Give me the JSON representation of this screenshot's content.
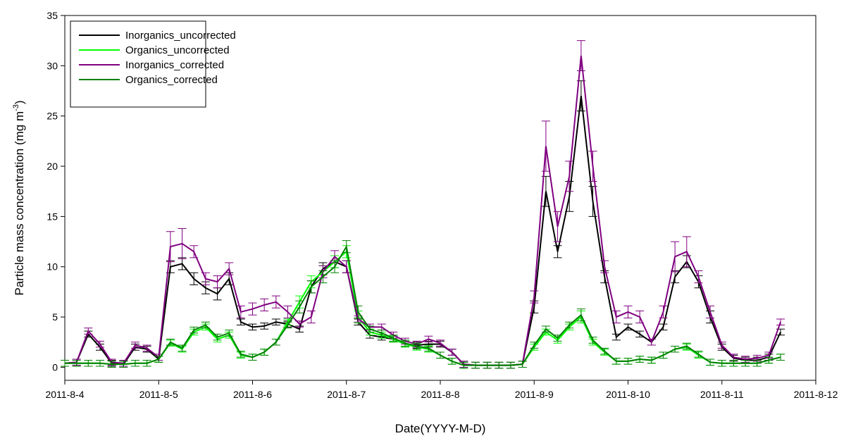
{
  "chart_data": {
    "type": "line",
    "xlabel": "Date(YYYY-M-D)",
    "ylabel": "Particle mass concentration (mg m",
    "ylabel_sup": "-3",
    "ylabel_end": ")",
    "xlim": [
      0,
      8
    ],
    "xticks": [
      {
        "value": 0,
        "label": "2011-8-4"
      },
      {
        "value": 1,
        "label": "2011-8-5"
      },
      {
        "value": 2,
        "label": "2011-8-6"
      },
      {
        "value": 3,
        "label": "2011-8-7"
      },
      {
        "value": 4,
        "label": "2011-8-8"
      },
      {
        "value": 5,
        "label": "2011-8-9"
      },
      {
        "value": 6,
        "label": "2011-8-10"
      },
      {
        "value": 7,
        "label": "2011-8-11"
      },
      {
        "value": 8,
        "label": "2011-8-12"
      }
    ],
    "ylim": [
      -1.3,
      35
    ],
    "yticks": [
      0,
      5,
      10,
      15,
      20,
      25,
      30,
      35
    ],
    "legend": "upper left",
    "x": [
      0,
      0.125,
      0.25,
      0.375,
      0.5,
      0.625,
      0.75,
      0.875,
      1,
      1.125,
      1.25,
      1.375,
      1.5,
      1.625,
      1.75,
      1.875,
      2,
      2.125,
      2.25,
      2.375,
      2.5,
      2.625,
      2.75,
      2.875,
      3,
      3.125,
      3.25,
      3.375,
      3.5,
      3.625,
      3.75,
      3.875,
      4,
      4.125,
      4.25,
      4.375,
      4.5,
      4.625,
      4.75,
      4.875,
      5,
      5.125,
      5.25,
      5.375,
      5.5,
      5.625,
      5.75,
      5.875,
      6,
      6.125,
      6.25,
      6.375,
      6.5,
      6.625,
      6.75,
      6.875,
      7,
      7.125,
      7.25,
      7.375,
      7.5,
      7.625
    ],
    "series": [
      {
        "name": "Inorganics_uncorrected",
        "color": "#000000",
        "values": [
          0.4,
          0.5,
          3.3,
          2.0,
          0.4,
          0.3,
          2.0,
          1.8,
          0.8,
          10.0,
          10.3,
          8.8,
          7.9,
          7.3,
          8.8,
          4.5,
          4.0,
          4.1,
          4.5,
          4.3,
          3.8,
          8.0,
          9.8,
          10.5,
          10.0,
          4.5,
          3.2,
          3.0,
          2.8,
          2.3,
          2.2,
          2.3,
          2.3,
          1.5,
          0.3,
          0.2,
          0.2,
          0.2,
          0.2,
          0.3,
          6.0,
          17.5,
          11.5,
          17.0,
          27.0,
          16.5,
          9.0,
          3.0,
          4.0,
          3.3,
          2.5,
          4.0,
          9.0,
          10.5,
          8.5,
          5.0,
          2.0,
          0.9,
          0.7,
          0.7,
          1.0,
          3.5
        ],
        "errors": [
          0.3,
          0.3,
          0.3,
          0.3,
          0.3,
          0.3,
          0.3,
          0.3,
          0.3,
          0.6,
          0.6,
          0.6,
          0.6,
          0.6,
          0.6,
          0.3,
          0.3,
          0.3,
          0.3,
          0.3,
          0.3,
          0.6,
          0.6,
          0.6,
          0.6,
          0.3,
          0.3,
          0.3,
          0.3,
          0.3,
          0.3,
          0.3,
          0.3,
          0.3,
          0.3,
          0.3,
          0.3,
          0.3,
          0.3,
          0.3,
          0.6,
          1.5,
          0.6,
          1.5,
          1.5,
          1.5,
          0.6,
          0.3,
          0.3,
          0.3,
          0.3,
          0.3,
          0.6,
          0.6,
          0.6,
          0.6,
          0.3,
          0.3,
          0.3,
          0.3,
          0.3,
          0.3
        ]
      },
      {
        "name": "Organics_uncorrected",
        "color": "#00ff00",
        "values": [
          0.4,
          0.4,
          0.4,
          0.4,
          0.3,
          0.3,
          0.4,
          0.4,
          0.8,
          2.4,
          1.8,
          3.5,
          4.0,
          2.8,
          3.2,
          1.2,
          1.0,
          1.5,
          2.5,
          4.5,
          6.5,
          8.5,
          9.5,
          10.5,
          11.5,
          5.0,
          3.5,
          3.2,
          2.8,
          2.3,
          2.0,
          1.8,
          1.2,
          0.6,
          0.2,
          0.2,
          0.2,
          0.2,
          0.2,
          0.3,
          2.0,
          3.5,
          2.7,
          4.0,
          5.0,
          2.5,
          1.5,
          0.6,
          0.6,
          0.8,
          0.7,
          1.2,
          1.8,
          2.0,
          1.2,
          0.5,
          0.4,
          0.4,
          0.4,
          0.4,
          0.7,
          1.0
        ],
        "errors": [
          0.3,
          0.3,
          0.3,
          0.3,
          0.3,
          0.3,
          0.3,
          0.3,
          0.3,
          0.3,
          0.3,
          0.3,
          0.3,
          0.3,
          0.3,
          0.3,
          0.3,
          0.3,
          0.3,
          0.3,
          0.6,
          0.6,
          0.6,
          0.6,
          0.6,
          0.6,
          0.3,
          0.3,
          0.3,
          0.3,
          0.3,
          0.3,
          0.3,
          0.3,
          0.3,
          0.3,
          0.3,
          0.3,
          0.3,
          0.3,
          0.3,
          0.3,
          0.3,
          0.3,
          0.6,
          0.3,
          0.3,
          0.3,
          0.3,
          0.3,
          0.3,
          0.3,
          0.3,
          0.3,
          0.3,
          0.3,
          0.3,
          0.3,
          0.3,
          0.3,
          0.3,
          0.3
        ]
      },
      {
        "name": "Inorganics_corrected",
        "color": "#800080",
        "values": [
          0.4,
          0.5,
          3.6,
          2.3,
          0.5,
          0.4,
          2.2,
          1.9,
          1.0,
          12.0,
          12.3,
          11.5,
          8.8,
          8.5,
          9.8,
          5.5,
          5.8,
          6.2,
          6.5,
          5.5,
          4.3,
          5.0,
          9.5,
          11.0,
          10.0,
          4.8,
          4.0,
          4.0,
          3.2,
          2.6,
          2.3,
          2.8,
          2.4,
          1.5,
          0.3,
          0.2,
          0.2,
          0.2,
          0.2,
          0.3,
          7.0,
          22.0,
          14.0,
          19.0,
          31.0,
          20.0,
          10.0,
          5.0,
          5.5,
          5.0,
          2.5,
          5.5,
          11.0,
          11.5,
          9.0,
          5.5,
          2.2,
          1.0,
          0.8,
          0.9,
          1.2,
          4.5
        ],
        "errors": [
          0.3,
          0.3,
          0.3,
          0.3,
          0.3,
          0.3,
          0.3,
          0.3,
          0.3,
          1.5,
          1.5,
          0.6,
          0.6,
          0.6,
          0.6,
          0.6,
          0.6,
          0.6,
          0.6,
          0.6,
          0.3,
          0.6,
          0.6,
          0.6,
          0.6,
          0.3,
          0.3,
          0.3,
          0.3,
          0.3,
          0.3,
          0.3,
          0.3,
          0.3,
          0.3,
          0.3,
          0.3,
          0.3,
          0.3,
          0.3,
          0.6,
          2.5,
          1.5,
          1.5,
          1.5,
          1.5,
          0.6,
          0.6,
          0.6,
          0.6,
          0.3,
          0.6,
          1.5,
          1.5,
          0.6,
          0.6,
          0.3,
          0.3,
          0.3,
          0.3,
          0.3,
          0.3
        ]
      },
      {
        "name": "Organics_corrected",
        "color": "#008000",
        "values": [
          0.4,
          0.4,
          0.4,
          0.4,
          0.3,
          0.3,
          0.4,
          0.4,
          0.8,
          2.5,
          1.9,
          3.7,
          4.2,
          3.0,
          3.4,
          1.3,
          1.0,
          1.5,
          2.5,
          4.2,
          6.0,
          8.0,
          9.0,
          10.0,
          12.0,
          5.5,
          3.8,
          3.4,
          2.9,
          2.4,
          2.1,
          1.9,
          1.2,
          0.6,
          0.2,
          0.2,
          0.2,
          0.2,
          0.2,
          0.3,
          2.2,
          3.8,
          2.9,
          4.2,
          5.2,
          2.7,
          1.6,
          0.6,
          0.6,
          0.8,
          0.7,
          1.2,
          1.8,
          2.1,
          1.3,
          0.5,
          0.4,
          0.4,
          0.4,
          0.4,
          0.7,
          1.0
        ],
        "errors": [
          0.3,
          0.3,
          0.3,
          0.3,
          0.3,
          0.3,
          0.3,
          0.3,
          0.3,
          0.3,
          0.3,
          0.3,
          0.3,
          0.3,
          0.3,
          0.3,
          0.3,
          0.3,
          0.3,
          0.3,
          0.6,
          0.6,
          0.6,
          0.6,
          0.6,
          0.6,
          0.3,
          0.3,
          0.3,
          0.3,
          0.3,
          0.3,
          0.3,
          0.3,
          0.3,
          0.3,
          0.3,
          0.3,
          0.3,
          0.3,
          0.3,
          0.3,
          0.3,
          0.3,
          0.6,
          0.3,
          0.3,
          0.3,
          0.3,
          0.3,
          0.3,
          0.3,
          0.3,
          0.3,
          0.3,
          0.3,
          0.3,
          0.3,
          0.3,
          0.3,
          0.3,
          0.3
        ]
      }
    ]
  }
}
